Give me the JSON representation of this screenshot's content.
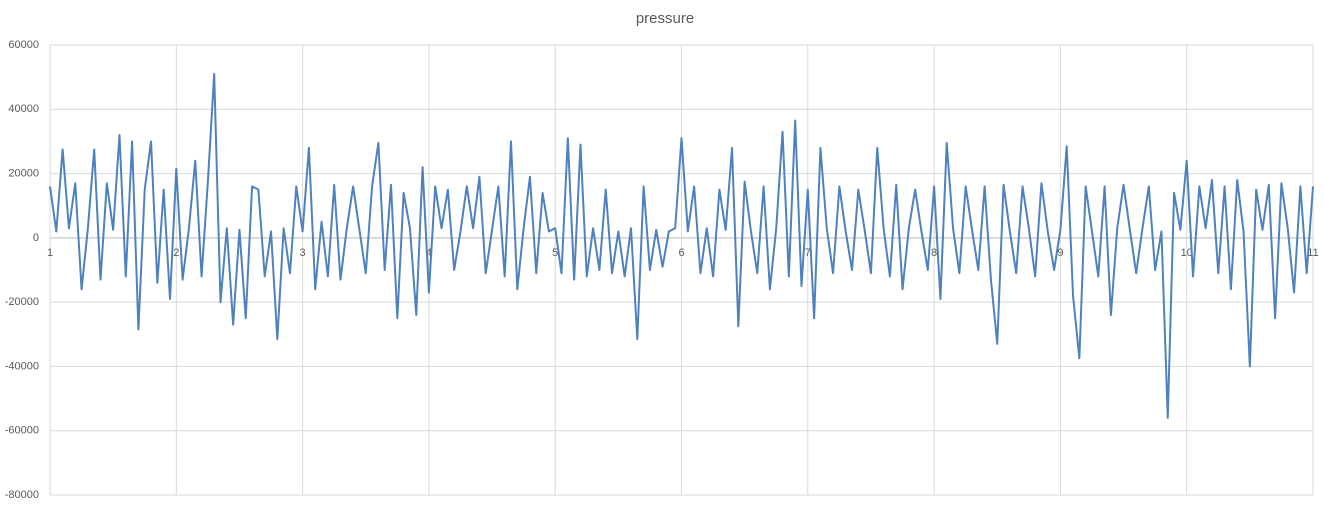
{
  "chart_data": {
    "type": "line",
    "title": "pressure",
    "color": "#4f81bd",
    "grid": true,
    "xlim": [
      1,
      11
    ],
    "xticks": [
      1,
      2,
      3,
      4,
      5,
      6,
      7,
      8,
      9,
      10,
      11
    ],
    "ylim": [
      -80000,
      60000
    ],
    "yticks": [
      -80000,
      -60000,
      -40000,
      -20000,
      0,
      20000,
      40000,
      60000
    ],
    "x": [
      1,
      1.05,
      1.1,
      1.15,
      1.2,
      1.25,
      1.3,
      1.35,
      1.4,
      1.45,
      1.5,
      1.55,
      1.6,
      1.65,
      1.7,
      1.75,
      1.8,
      1.85,
      1.9,
      1.95,
      2,
      2.05,
      2.1,
      2.15,
      2.2,
      2.25,
      2.3,
      2.35,
      2.4,
      2.45,
      2.5,
      2.55,
      2.6,
      2.65,
      2.7,
      2.75,
      2.8,
      2.85,
      2.9,
      2.95,
      3,
      3.05,
      3.1,
      3.15,
      3.2,
      3.25,
      3.3,
      3.35,
      3.4,
      3.45,
      3.5,
      3.55,
      3.6,
      3.65,
      3.7,
      3.75,
      3.8,
      3.85,
      3.9,
      3.95,
      4,
      4.05,
      4.1,
      4.15,
      4.2,
      4.25,
      4.3,
      4.35,
      4.4,
      4.45,
      4.5,
      4.55,
      4.6,
      4.65,
      4.7,
      4.75,
      4.8,
      4.85,
      4.9,
      4.95,
      5,
      5.05,
      5.1,
      5.15,
      5.2,
      5.25,
      5.3,
      5.35,
      5.4,
      5.45,
      5.5,
      5.55,
      5.6,
      5.65,
      5.7,
      5.75,
      5.8,
      5.85,
      5.9,
      5.95,
      6,
      6.05,
      6.1,
      6.15,
      6.2,
      6.25,
      6.3,
      6.35,
      6.4,
      6.45,
      6.5,
      6.55,
      6.6,
      6.65,
      6.7,
      6.75,
      6.8,
      6.85,
      6.9,
      6.95,
      7,
      7.05,
      7.1,
      7.15,
      7.2,
      7.25,
      7.3,
      7.35,
      7.4,
      7.45,
      7.5,
      7.55,
      7.6,
      7.65,
      7.7,
      7.75,
      7.8,
      7.85,
      7.9,
      7.95,
      8,
      8.05,
      8.1,
      8.15,
      8.2,
      8.25,
      8.3,
      8.35,
      8.4,
      8.45,
      8.5,
      8.55,
      8.6,
      8.65,
      8.7,
      8.75,
      8.8,
      8.85,
      8.9,
      8.95,
      9,
      9.05,
      9.1,
      9.15,
      9.2,
      9.25,
      9.3,
      9.35,
      9.4,
      9.45,
      9.5,
      9.55,
      9.6,
      9.65,
      9.7,
      9.75,
      9.8,
      9.85,
      9.9,
      9.95,
      10,
      10.05,
      10.1,
      10.15,
      10.2,
      10.25,
      10.3,
      10.35,
      10.4,
      10.45,
      10.5,
      10.55,
      10.6,
      10.65,
      10.7,
      10.75,
      10.8,
      10.85,
      10.9,
      10.95,
      11
    ],
    "values": [
      16000,
      2000,
      27500,
      3000,
      17000,
      -16000,
      3000,
      27500,
      -13000,
      17000,
      2500,
      32000,
      -12000,
      30000,
      -28500,
      15000,
      30000,
      -14000,
      15000,
      -19000,
      21500,
      -13000,
      3000,
      24000,
      -12000,
      17500,
      51000,
      -20000,
      3000,
      -27000,
      2500,
      -25000,
      16000,
      15000,
      -12000,
      2000,
      -31500,
      3000,
      -11000,
      16000,
      2000,
      28000,
      -16000,
      5000,
      -12000,
      16500,
      -13000,
      3000,
      16000,
      2500,
      -11000,
      16000,
      29500,
      -10000,
      16500,
      -25000,
      14000,
      3000,
      -24000,
      22000,
      -17000,
      16000,
      3000,
      15000,
      -10000,
      2000,
      16000,
      3000,
      19000,
      -11000,
      2500,
      16000,
      -12000,
      30000,
      -16000,
      3000,
      19000,
      -11000,
      14000,
      2000,
      3000,
      -11000,
      31000,
      -13000,
      29000,
      -12000,
      3000,
      -10000,
      15000,
      -11000,
      2000,
      -12000,
      3000,
      -31500,
      16000,
      -10000,
      2500,
      -9000,
      2000,
      3000,
      31000,
      2000,
      16000,
      -11000,
      3000,
      -12000,
      15000,
      2500,
      28000,
      -27500,
      17500,
      2000,
      -11000,
      16000,
      -16000,
      3000,
      33000,
      -12000,
      36500,
      -15000,
      15000,
      -25000,
      28000,
      3000,
      -11000,
      16000,
      2000,
      -10000,
      15000,
      2500,
      -11000,
      28000,
      3000,
      -12000,
      16500,
      -16000,
      3000,
      15000,
      2000,
      -10000,
      16000,
      -19000,
      29500,
      3000,
      -11000,
      16000,
      2500,
      -10000,
      16000,
      -13000,
      -33000,
      16500,
      2000,
      -11000,
      16000,
      3000,
      -12000,
      17000,
      2000,
      -10000,
      2500,
      28500,
      -18000,
      -37500,
      16000,
      2000,
      -12000,
      16000,
      -24000,
      3000,
      16500,
      2500,
      -11000,
      3000,
      16000,
      -10000,
      2000,
      -56000,
      14000,
      2500,
      24000,
      -12000,
      16000,
      3000,
      18000,
      -11000,
      16000,
      -16000,
      18000,
      2000,
      -40000,
      15000,
      2500,
      16500,
      -25000,
      17000,
      3000,
      -17000,
      16000,
      -11000,
      16000
    ]
  }
}
